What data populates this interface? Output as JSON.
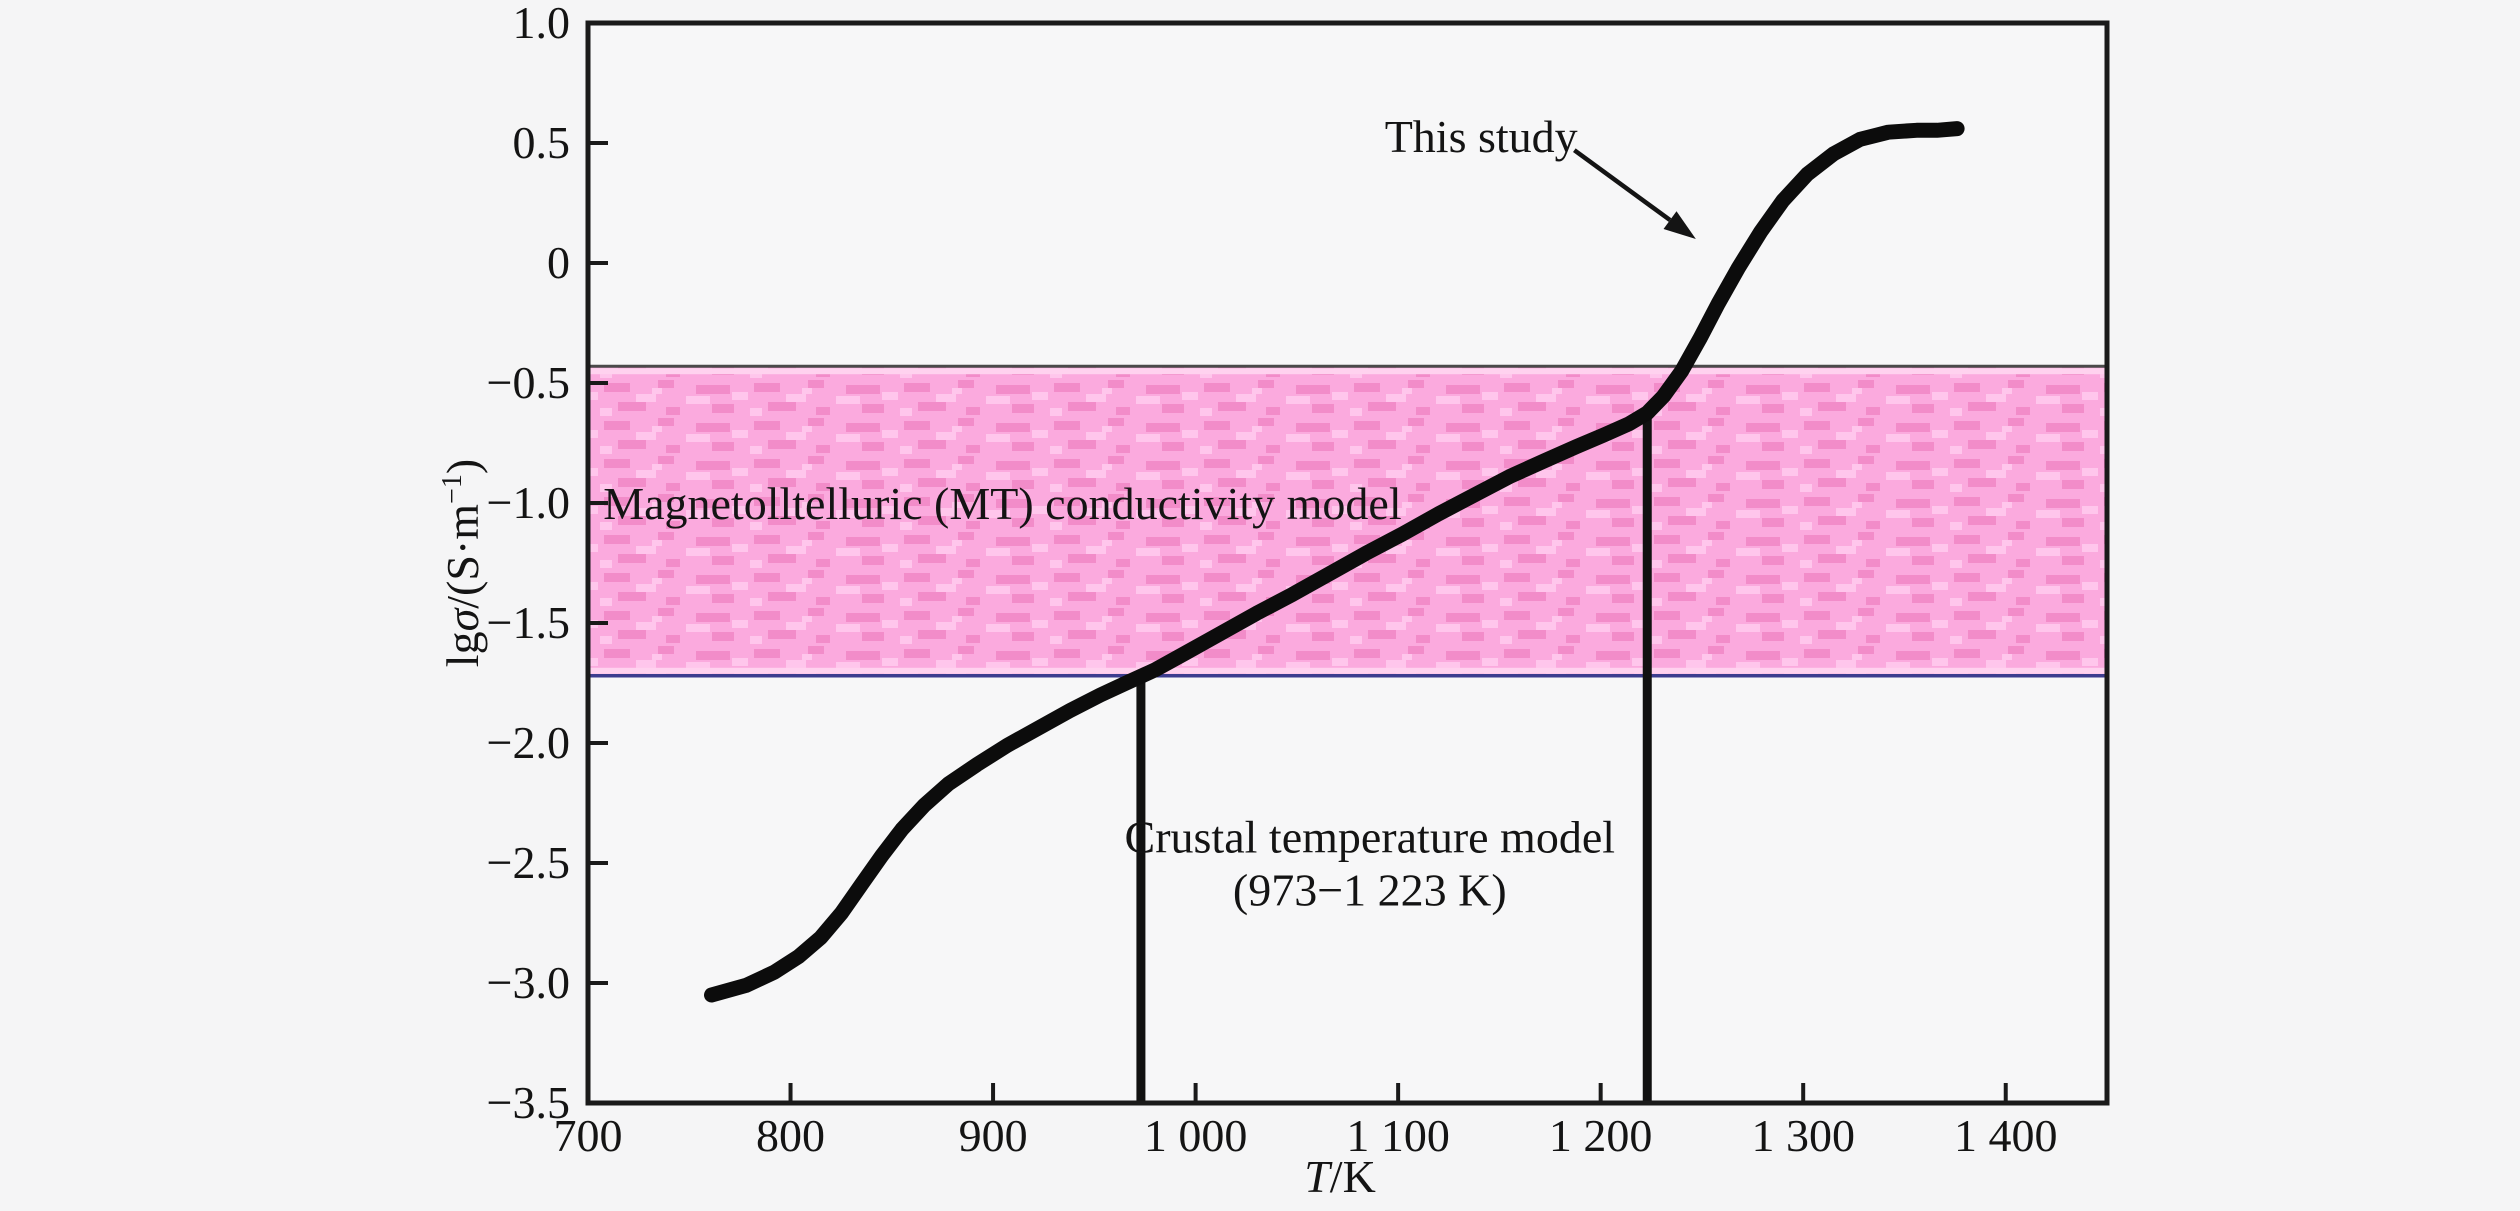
{
  "figure": {
    "background_color": "#f5f5f6",
    "plot_background_color": "#f7f7f8",
    "axis_color": "#1a1a1a",
    "text_color": "#141414"
  },
  "chart_data": {
    "type": "line",
    "title": "",
    "xlabel_parts": {
      "var": "T",
      "rest": "/K"
    },
    "ylabel_parts": {
      "prefix": "lg",
      "var": "σ",
      "unit": "/(S·m",
      "sup": "−1",
      "close": ")"
    },
    "xlim": [
      700,
      1450
    ],
    "ylim": [
      -3.5,
      1.0
    ],
    "x_ticks": [
      {
        "value": 700,
        "label": "700"
      },
      {
        "value": 800,
        "label": "800"
      },
      {
        "value": 900,
        "label": "900"
      },
      {
        "value": 1000,
        "label": "1 000"
      },
      {
        "value": 1100,
        "label": "1 100"
      },
      {
        "value": 1200,
        "label": "1 200"
      },
      {
        "value": 1300,
        "label": "1 300"
      },
      {
        "value": 1400,
        "label": "1 400"
      }
    ],
    "y_ticks": [
      {
        "value": 1.0,
        "label": "1.0"
      },
      {
        "value": 0.5,
        "label": "0.5"
      },
      {
        "value": 0,
        "label": "0"
      },
      {
        "value": -0.5,
        "label": "−0.5"
      },
      {
        "value": -1.0,
        "label": "−1.0"
      },
      {
        "value": -1.5,
        "label": "−1.5"
      },
      {
        "value": -2.0,
        "label": "−2.0"
      },
      {
        "value": -2.5,
        "label": "−2.5"
      },
      {
        "value": -3.0,
        "label": "−3.0"
      },
      {
        "value": -3.5,
        "label": "−3.5"
      }
    ],
    "series": [
      {
        "name": "This study",
        "color": "#0c0c0c",
        "points": [
          [
            761,
            -3.05
          ],
          [
            778,
            -3.01
          ],
          [
            792,
            -2.955
          ],
          [
            804,
            -2.89
          ],
          [
            815,
            -2.81
          ],
          [
            825,
            -2.71
          ],
          [
            835,
            -2.59
          ],
          [
            845,
            -2.47
          ],
          [
            855,
            -2.36
          ],
          [
            866,
            -2.26
          ],
          [
            878,
            -2.17
          ],
          [
            892,
            -2.09
          ],
          [
            907,
            -2.01
          ],
          [
            922,
            -1.94
          ],
          [
            938,
            -1.865
          ],
          [
            953,
            -1.8
          ],
          [
            967,
            -1.745
          ],
          [
            980,
            -1.695
          ],
          [
            995,
            -1.625
          ],
          [
            1012,
            -1.545
          ],
          [
            1030,
            -1.46
          ],
          [
            1048,
            -1.38
          ],
          [
            1066,
            -1.295
          ],
          [
            1084,
            -1.21
          ],
          [
            1102,
            -1.13
          ],
          [
            1120,
            -1.045
          ],
          [
            1138,
            -0.965
          ],
          [
            1155,
            -0.89
          ],
          [
            1172,
            -0.825
          ],
          [
            1188,
            -0.765
          ],
          [
            1202,
            -0.715
          ],
          [
            1214,
            -0.67
          ],
          [
            1223,
            -0.625
          ],
          [
            1231,
            -0.555
          ],
          [
            1240,
            -0.45
          ],
          [
            1249,
            -0.315
          ],
          [
            1258,
            -0.17
          ],
          [
            1268,
            -0.02
          ],
          [
            1279,
            0.13
          ],
          [
            1290,
            0.26
          ],
          [
            1302,
            0.37
          ],
          [
            1315,
            0.455
          ],
          [
            1328,
            0.515
          ],
          [
            1342,
            0.545
          ],
          [
            1356,
            0.553
          ],
          [
            1366,
            0.553
          ],
          [
            1376,
            0.56
          ]
        ]
      }
    ],
    "band": {
      "y_top": -0.43,
      "y_bottom": -1.72,
      "fill": "#fbaade",
      "texture_dark": "#f28cc9",
      "texture_light": "#ffc6ec",
      "inner_strip": "#ffd2ef",
      "edge_top_color": "#4a4a4a",
      "edge_bottom_color": "#3d3d8f"
    },
    "vlines": {
      "x1": 973,
      "x1_top": -1.72,
      "x2": 1223,
      "x2_top": -0.625,
      "color": "#111111"
    },
    "labels": {
      "band": {
        "text": "Magnetolltelluric (MT) conductivity model",
        "x": 707.5,
        "y": -1.0,
        "anchor": "start"
      },
      "crustal1": {
        "text": "Crustal temperature model",
        "x": 1086,
        "y": -2.39,
        "anchor": "middle"
      },
      "crustal2": {
        "text": "(973−1 223 K)",
        "x": 1086,
        "y": -2.61,
        "anchor": "middle"
      },
      "this_study": {
        "text": "This study",
        "x": 1141,
        "y": 0.53,
        "anchor": "middle"
      }
    },
    "annotation_arrow": {
      "from": [
        1187,
        0.47
      ],
      "to": [
        1247,
        0.1
      ]
    }
  }
}
